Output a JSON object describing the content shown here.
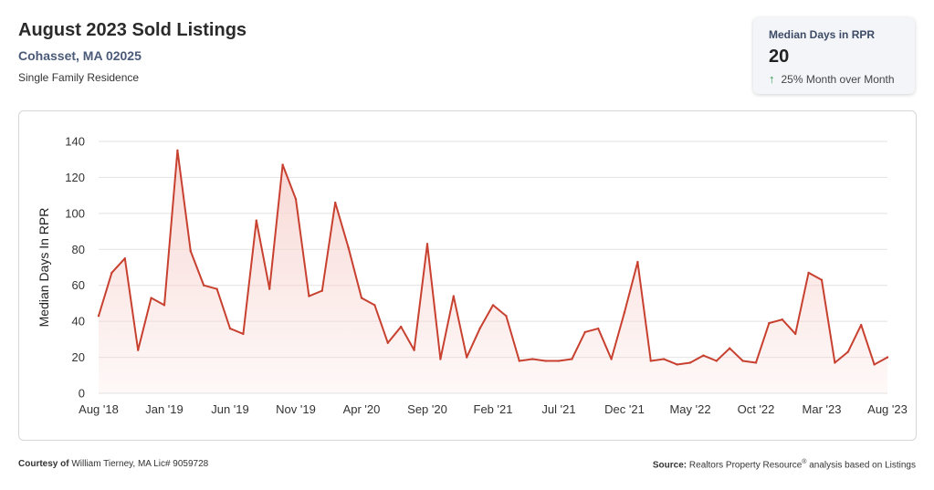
{
  "header": {
    "title": "August 2023 Sold Listings",
    "location": "Cohasset, MA 02025",
    "property_type": "Single Family Residence"
  },
  "stat_card": {
    "label": "Median Days in RPR",
    "value": "20",
    "change_icon": "arrow-up-icon",
    "change_text": "25% Month over Month",
    "change_color": "#2e9a4a"
  },
  "footer": {
    "courtesy_label": "Courtesy of",
    "courtesy_text": "William Tierney, MA Lic# 9059728",
    "source_label": "Source:",
    "source_text_1": "Realtors Property Resource",
    "source_mark": "®",
    "source_text_2": "analysis based on Listings"
  },
  "chart_data": {
    "type": "area",
    "title": "",
    "xlabel": "",
    "ylabel": "Median Days In RPR",
    "ylim": [
      0,
      140
    ],
    "yticks": [
      0,
      20,
      40,
      60,
      80,
      100,
      120,
      140
    ],
    "grid": true,
    "line_color": "#c8402f",
    "fill_color": "#f7d4d0",
    "x_tick_labels": [
      "Aug '18",
      "Jan '19",
      "Jun '19",
      "Nov '19",
      "Apr '20",
      "Sep '20",
      "Feb '21",
      "Jul '21",
      "Dec '21",
      "May '22",
      "Oct '22",
      "Mar '23",
      "Aug '23"
    ],
    "x": [
      "Aug '18",
      "Sep '18",
      "Oct '18",
      "Nov '18",
      "Dec '18",
      "Jan '19",
      "Feb '19",
      "Mar '19",
      "Apr '19",
      "May '19",
      "Jun '19",
      "Jul '19",
      "Aug '19",
      "Sep '19",
      "Oct '19",
      "Nov '19",
      "Dec '19",
      "Jan '20",
      "Feb '20",
      "Mar '20",
      "Apr '20",
      "May '20",
      "Jun '20",
      "Jul '20",
      "Aug '20",
      "Sep '20",
      "Oct '20",
      "Nov '20",
      "Dec '20",
      "Jan '21",
      "Feb '21",
      "Mar '21",
      "Apr '21",
      "May '21",
      "Jun '21",
      "Jul '21",
      "Aug '21",
      "Sep '21",
      "Oct '21",
      "Nov '21",
      "Dec '21",
      "Jan '22",
      "Feb '22",
      "Mar '22",
      "Apr '22",
      "May '22",
      "Jun '22",
      "Jul '22",
      "Aug '22",
      "Sep '22",
      "Oct '22",
      "Nov '22",
      "Dec '22",
      "Jan '23",
      "Feb '23",
      "Mar '23",
      "Apr '23",
      "May '23",
      "Jun '23",
      "Jul '23",
      "Aug '23"
    ],
    "series": [
      {
        "values": [
          43,
          67,
          75,
          24,
          53,
          49,
          135,
          79,
          60,
          58,
          36,
          33,
          96,
          58,
          127,
          108,
          54,
          57,
          106,
          81,
          53,
          49,
          28,
          37,
          24,
          83,
          19,
          54,
          20,
          36,
          49,
          43,
          18,
          19,
          18,
          18,
          19,
          34,
          36,
          19,
          45,
          73,
          18,
          19,
          16,
          17,
          21,
          18,
          25,
          18,
          17,
          39,
          41,
          33,
          67,
          63,
          17,
          23,
          38,
          16,
          20
        ]
      }
    ]
  }
}
